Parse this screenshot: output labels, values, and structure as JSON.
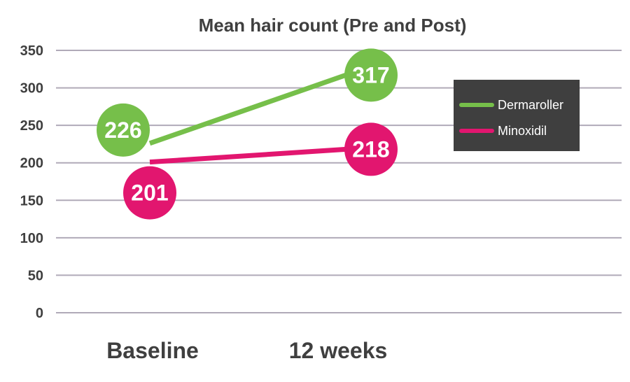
{
  "chart_data": {
    "type": "line",
    "title": "Mean hair count (Pre and Post)",
    "categories": [
      "Baseline",
      "12 weeks"
    ],
    "series": [
      {
        "name": "Dermaroller",
        "values": [
          226,
          317
        ],
        "color": "#76bf4a"
      },
      {
        "name": "Minoxidil",
        "values": [
          201,
          218
        ],
        "color": "#e2166f"
      }
    ],
    "ylim": [
      0,
      350
    ],
    "yticks": [
      "0",
      "50",
      "100",
      "150",
      "200",
      "250",
      "300",
      "350"
    ],
    "grid": true,
    "legend_position": "top-right",
    "legend_background": "#3f3f3f",
    "gridline_color": "#b0aab8",
    "text_color": "#3f3f3f"
  }
}
